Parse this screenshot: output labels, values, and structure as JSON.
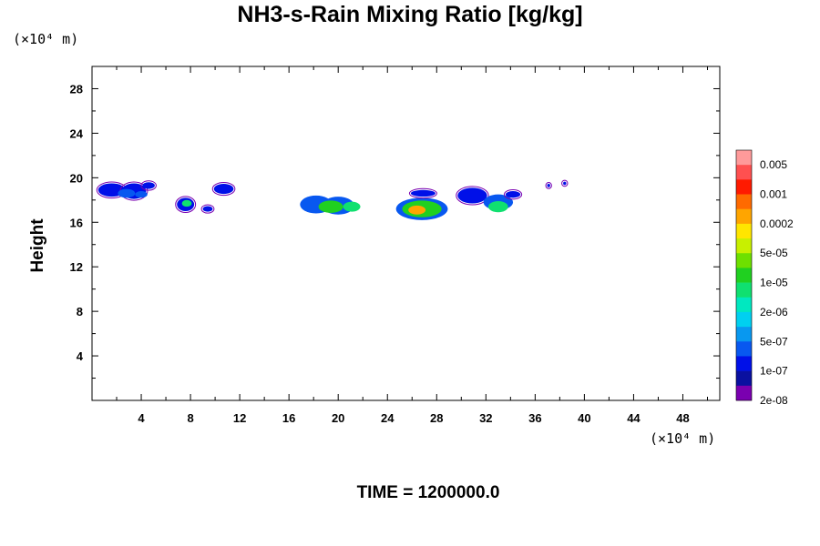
{
  "title": "NH3-s-Rain Mixing Ratio [kg/kg]",
  "y_unit_label": "(×10⁴ m)",
  "x_unit_label": "(×10⁴ m)",
  "time_label": "TIME = 1200000.0",
  "chart_data": {
    "type": "heatmap",
    "title": "NH3-s-Rain Mixing Ratio [kg/kg]",
    "ylabel": "Height",
    "xlabel": "",
    "xlim": [
      0,
      51
    ],
    "ylim": [
      0,
      30
    ],
    "x_ticks": [
      4,
      8,
      12,
      16,
      20,
      24,
      28,
      32,
      36,
      40,
      44,
      48
    ],
    "y_ticks": [
      4,
      8,
      12,
      16,
      20,
      24,
      28
    ],
    "colorbar": {
      "labels": [
        "0.005",
        "0.001",
        "0.0002",
        "5e-05",
        "1e-05",
        "2e-06",
        "5e-07",
        "1e-07",
        "2e-08"
      ],
      "colors": [
        "#ff9a9a",
        "#ff5050",
        "#ff1a00",
        "#ff6a00",
        "#ffa500",
        "#ffe600",
        "#c8f000",
        "#6ee000",
        "#20d020",
        "#10e070",
        "#00e8c0",
        "#00d0f0",
        "#0898f0",
        "#0858f0",
        "#0010e8",
        "#0a10a0",
        "#7a00b0"
      ]
    },
    "cells": [
      {
        "x": 1.6,
        "y": 18.9,
        "w": 2.2,
        "h": 1.2,
        "level": "2e-08"
      },
      {
        "x": 3.4,
        "y": 18.8,
        "w": 2.0,
        "h": 1.4,
        "level": "2e-08"
      },
      {
        "x": 4.6,
        "y": 19.3,
        "w": 1.0,
        "h": 0.6,
        "level": "2e-08"
      },
      {
        "x": 2.8,
        "y": 18.6,
        "w": 1.4,
        "h": 0.8,
        "level": "1e-07"
      },
      {
        "x": 4.0,
        "y": 18.5,
        "w": 1.0,
        "h": 0.6,
        "level": "1e-07"
      },
      {
        "x": 7.6,
        "y": 17.6,
        "w": 1.4,
        "h": 1.2,
        "level": "2e-08"
      },
      {
        "x": 7.7,
        "y": 17.7,
        "w": 0.8,
        "h": 0.6,
        "level": "2e-06"
      },
      {
        "x": 9.4,
        "y": 17.2,
        "w": 0.8,
        "h": 0.5,
        "level": "2e-08"
      },
      {
        "x": 10.7,
        "y": 19.0,
        "w": 1.6,
        "h": 0.9,
        "level": "2e-08"
      },
      {
        "x": 18.2,
        "y": 17.6,
        "w": 2.6,
        "h": 1.6,
        "level": "1e-07"
      },
      {
        "x": 20.0,
        "y": 17.5,
        "w": 2.6,
        "h": 1.6,
        "level": "1e-07"
      },
      {
        "x": 19.4,
        "y": 17.4,
        "w": 2.0,
        "h": 1.1,
        "level": "1e-05"
      },
      {
        "x": 21.1,
        "y": 17.4,
        "w": 1.4,
        "h": 0.9,
        "level": "2e-06"
      },
      {
        "x": 26.8,
        "y": 17.2,
        "w": 4.2,
        "h": 2.0,
        "level": "1e-07"
      },
      {
        "x": 26.8,
        "y": 17.2,
        "w": 3.2,
        "h": 1.5,
        "level": "1e-05"
      },
      {
        "x": 26.4,
        "y": 17.1,
        "w": 1.4,
        "h": 0.8,
        "level": "0.0002"
      },
      {
        "x": 26.9,
        "y": 18.6,
        "w": 2.0,
        "h": 0.6,
        "level": "2e-08"
      },
      {
        "x": 30.9,
        "y": 18.4,
        "w": 2.4,
        "h": 1.4,
        "level": "2e-08"
      },
      {
        "x": 33.0,
        "y": 17.8,
        "w": 2.4,
        "h": 1.4,
        "level": "1e-07"
      },
      {
        "x": 33.0,
        "y": 17.4,
        "w": 1.6,
        "h": 1.0,
        "level": "2e-06"
      },
      {
        "x": 34.2,
        "y": 18.5,
        "w": 1.2,
        "h": 0.6,
        "level": "2e-08"
      },
      {
        "x": 37.1,
        "y": 19.3,
        "w": 0.25,
        "h": 0.3,
        "level": "2e-08"
      },
      {
        "x": 38.4,
        "y": 19.5,
        "w": 0.25,
        "h": 0.3,
        "level": "2e-08"
      }
    ]
  }
}
